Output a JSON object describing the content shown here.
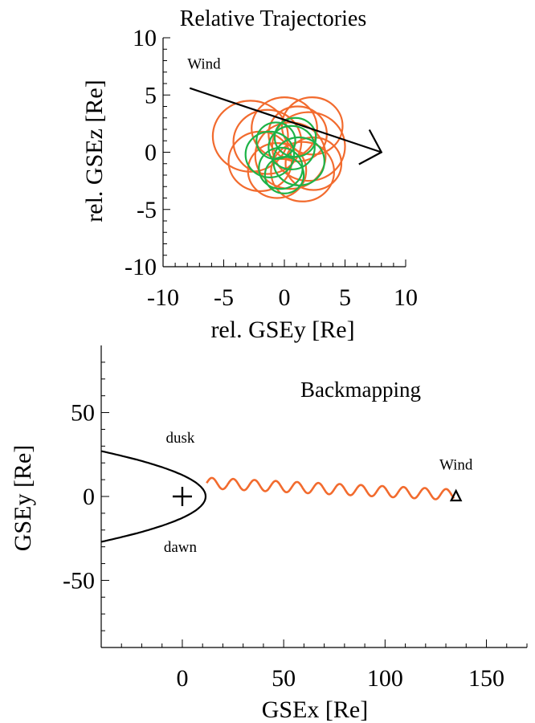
{
  "colors": {
    "orange": "#F26B2E",
    "green": "#1DB347",
    "black": "#000000"
  },
  "chart_data": [
    {
      "type": "line",
      "title": "Relative Trajectories",
      "xlabel": "rel. GSEy [Re]",
      "ylabel": "rel. GSEz [Re]",
      "xlim": [
        -10,
        10
      ],
      "ylim": [
        -10,
        10
      ],
      "x_ticks": [
        "-10",
        "-5",
        "0",
        "5",
        "10"
      ],
      "y_ticks": [
        "10",
        "5",
        "0",
        "-5",
        "-10"
      ],
      "grid": false,
      "annotations": [
        {
          "text": "Wind",
          "x": -8,
          "y": 7.3
        }
      ],
      "wind_arrow": {
        "from": [
          -7.8,
          5.6
        ],
        "to": [
          8.0,
          0.0
        ]
      },
      "series": [
        {
          "color": "orange",
          "shape": "circle",
          "circles": [
            {
              "cx": -2.8,
              "cy": 1.4,
              "r": 3.1
            },
            {
              "cx": -2.0,
              "cy": -0.8,
              "r": 2.6
            },
            {
              "cx": -1.4,
              "cy": 0.9,
              "r": 2.8
            },
            {
              "cx": -0.6,
              "cy": -1.6,
              "r": 2.4
            },
            {
              "cx": 0.0,
              "cy": 2.1,
              "r": 2.7
            },
            {
              "cx": 0.5,
              "cy": -0.3,
              "r": 2.9
            },
            {
              "cx": 1.1,
              "cy": 1.6,
              "r": 2.4
            },
            {
              "cx": 1.5,
              "cy": -1.7,
              "r": 2.6
            },
            {
              "cx": 2.0,
              "cy": 0.5,
              "r": 3.0
            },
            {
              "cx": 2.4,
              "cy": -1.0,
              "r": 2.3
            },
            {
              "cx": 2.3,
              "cy": 2.3,
              "r": 2.5
            }
          ]
        },
        {
          "color": "green",
          "shape": "circle",
          "circles": [
            {
              "cx": -1.2,
              "cy": -0.2,
              "r": 2.0
            },
            {
              "cx": -0.3,
              "cy": -1.4,
              "r": 1.8
            },
            {
              "cx": 0.6,
              "cy": 0.4,
              "r": 1.9
            },
            {
              "cx": 1.2,
              "cy": -0.8,
              "r": 2.1
            },
            {
              "cx": 0.9,
              "cy": 1.3,
              "r": 1.7
            },
            {
              "cx": 0.0,
              "cy": -2.0,
              "r": 1.6
            },
            {
              "cx": -0.7,
              "cy": 1.0,
              "r": 1.6
            }
          ]
        }
      ]
    },
    {
      "type": "line",
      "title": "Backmapping",
      "xlabel": "GSEx [Re]",
      "ylabel": "GSEy [Re]",
      "xlim": [
        -40,
        170
      ],
      "ylim": [
        -90,
        90
      ],
      "x_ticks": [
        "0",
        "50",
        "100",
        "150"
      ],
      "y_ticks": [
        "50",
        "0",
        "-50"
      ],
      "grid": false,
      "annotations": [
        {
          "text": "dusk",
          "x": -1,
          "y": 32
        },
        {
          "text": "dawn",
          "x": -1,
          "y": -33
        },
        {
          "text": "Wind",
          "x": 135,
          "y": 16
        }
      ],
      "earth_marker": {
        "x": 0,
        "y": 0,
        "symbol": "+"
      },
      "wind_marker": {
        "x": 135,
        "y": 0,
        "symbol": "triangle"
      },
      "magnetopause": {
        "nose_x": 11.5,
        "flank_y": 27,
        "x_at_edge": -40
      },
      "series": [
        {
          "color": "orange",
          "shape": "wave",
          "x_start": 12,
          "x_end": 134,
          "y_start": 8,
          "y_end": 1,
          "amplitude": 3.2,
          "wavelength": 10.5
        }
      ]
    }
  ]
}
